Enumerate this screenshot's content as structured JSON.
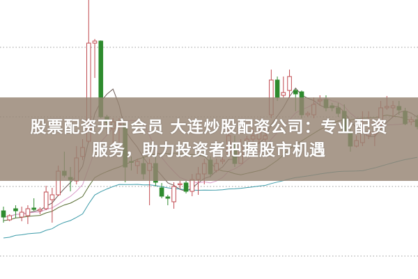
{
  "banner": {
    "line1": "股票配资开户会员 大连炒股配资公司：专业配资",
    "line2": "服务，助力投资者把握股市机遇"
  },
  "chart_data": {
    "type": "candlestick",
    "title": "",
    "xlabel": "",
    "ylabel": "",
    "ylim": [
      0,
      40
    ],
    "grid": "dotted horizontal",
    "legend": "none",
    "colors": {
      "up": "#c0484e",
      "down": "#2e8b2e",
      "ma_fast": "#6b5a55",
      "ma_mid": "#d99ac8",
      "ma_slow": "#556b2f",
      "ma_long": "#3a9aa8",
      "grid": "#999999"
    },
    "fields": [
      "open",
      "high",
      "low",
      "close"
    ],
    "candles": [
      [
        9.7,
        10.3,
        8.0,
        8.8
      ],
      [
        8.4,
        9.2,
        8.2,
        9.0
      ],
      [
        10.0,
        10.5,
        8.7,
        9.7
      ],
      [
        8.8,
        10.3,
        8.2,
        9.5
      ],
      [
        9.0,
        10.5,
        7.8,
        10.0
      ],
      [
        10.1,
        11.5,
        9.7,
        9.9
      ],
      [
        9.7,
        10.2,
        9.2,
        9.9
      ],
      [
        10.0,
        13.3,
        9.8,
        12.4
      ],
      [
        11.3,
        13.0,
        8.0,
        12.0
      ],
      [
        12.0,
        16.2,
        11.8,
        15.4
      ],
      [
        15.4,
        18.2,
        14.5,
        14.8
      ],
      [
        14.5,
        16.0,
        12.5,
        14.2
      ],
      [
        14.0,
        19.0,
        13.5,
        17.3
      ],
      [
        17.5,
        20.0,
        17.0,
        18.8
      ],
      [
        19.7,
        40.0,
        19.5,
        33.8
      ],
      [
        33.8,
        34.4,
        28.8,
        34.1
      ],
      [
        34.1,
        34.2,
        23.0,
        23.2
      ],
      [
        23.2,
        23.5,
        21.5,
        22.4
      ],
      [
        21.5,
        23.0,
        19.0,
        22.5
      ],
      [
        22.0,
        23.0,
        19.0,
        22.2
      ],
      [
        22.0,
        22.2,
        13.8,
        16.0
      ],
      [
        16.8,
        17.5,
        15.5,
        16.7
      ],
      [
        16.2,
        17.2,
        15.0,
        16.8
      ],
      [
        16.5,
        17.5,
        14.2,
        15.0
      ],
      [
        15.5,
        17.2,
        10.5,
        16.5
      ],
      [
        16.5,
        17.5,
        13.2,
        13.8
      ],
      [
        13.0,
        13.7,
        11.5,
        11.8
      ],
      [
        11.7,
        12.0,
        10.5,
        11.5
      ],
      [
        11.0,
        13.8,
        10.0,
        13.2
      ],
      [
        13.5,
        14.0,
        12.8,
        13.6
      ],
      [
        13.7,
        14.0,
        12.2,
        12.5
      ],
      [
        12.5,
        15.0,
        11.8,
        14.2
      ],
      [
        14.2,
        16.0,
        12.0,
        15.0
      ],
      [
        15.0,
        17.2,
        13.5,
        16.5
      ],
      [
        17.0,
        17.5,
        14.5,
        15.0
      ],
      [
        15.5,
        17.2,
        15.2,
        16.5
      ],
      [
        16.8,
        17.5,
        16.4,
        17.0
      ],
      [
        18.0,
        21.5,
        17.5,
        20.5
      ],
      [
        19.5,
        20.5,
        16.0,
        16.5
      ],
      [
        16.5,
        20.0,
        16.5,
        19.0
      ],
      [
        19.0,
        20.5,
        18.8,
        20.0
      ],
      [
        20.0,
        21.5,
        19.5,
        20.5
      ],
      [
        20.0,
        21.5,
        19.4,
        21.0
      ],
      [
        20.0,
        21.5,
        19.5,
        20.5
      ],
      [
        23.5,
        30.0,
        23.0,
        28.5
      ],
      [
        28.5,
        29.0,
        25.5,
        26.0
      ],
      [
        26.3,
        29.0,
        26.0,
        26.7
      ],
      [
        27.0,
        30.0,
        26.0,
        29.0
      ],
      [
        27.0,
        27.2,
        24.0,
        26.5
      ],
      [
        26.8,
        27.0,
        23.0,
        23.5
      ],
      [
        23.5,
        24.0,
        23.2,
        23.7
      ],
      [
        23.5,
        26.0,
        23.0,
        25.0
      ],
      [
        25.5,
        26.3,
        24.8,
        25.7
      ],
      [
        25.7,
        26.3,
        24.0,
        24.5
      ],
      [
        24.8,
        25.2,
        24.0,
        24.5
      ],
      [
        24.5,
        25.2,
        23.2,
        23.7
      ],
      [
        24.0,
        25.0,
        21.0,
        21.2
      ],
      [
        21.0,
        21.5,
        18.2,
        19.0
      ],
      [
        19.0,
        20.5,
        18.8,
        19.8
      ],
      [
        19.5,
        24.0,
        19.0,
        21.0
      ],
      [
        20.5,
        24.0,
        20.0,
        21.0
      ],
      [
        20.7,
        22.0,
        19.0,
        21.0
      ],
      [
        22.0,
        25.5,
        21.5,
        24.5
      ],
      [
        24.5,
        26.2,
        24.2,
        24.7
      ],
      [
        24.5,
        25.5,
        23.2,
        24.8
      ],
      [
        24.7,
        25.5,
        23.5,
        24.2
      ],
      [
        24.0,
        24.5,
        22.0,
        22.2
      ],
      [
        22.5,
        23.2,
        22.0,
        22.8
      ],
      [
        22.8,
        23.5,
        21.4,
        21.8
      ]
    ]
  }
}
